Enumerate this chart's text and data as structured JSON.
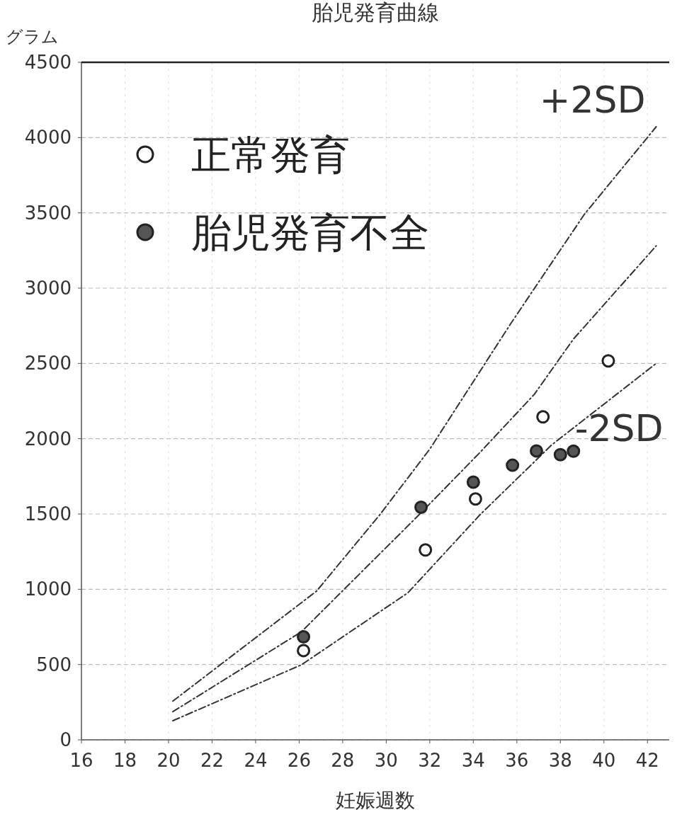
{
  "chart_data": {
    "type": "scatter",
    "title": "胎児発育曲線",
    "xlabel": "妊娠週数",
    "ylabel": "グラム",
    "xlim": [
      16,
      43
    ],
    "ylim": [
      0,
      4500
    ],
    "xticks": [
      16,
      18,
      20,
      22,
      24,
      26,
      28,
      30,
      32,
      34,
      36,
      38,
      40,
      42
    ],
    "yticks": [
      0,
      500,
      1000,
      1500,
      2000,
      2500,
      3000,
      3500,
      4000,
      4500
    ],
    "grid": true,
    "legend": "top left",
    "series": [
      {
        "name": "+2SD",
        "type": "line",
        "line_style": "dashed",
        "color": "#333333",
        "x": [
          20.2,
          26.8,
          29.7,
          32.0,
          35.7,
          36.8,
          39.1,
          42.4
        ],
        "values": [
          257,
          988,
          1494,
          1931,
          2760,
          2997,
          3490,
          4072
        ]
      },
      {
        "type": "line",
        "line_style": "dashed",
        "color": "#333333",
        "x": [
          20.2,
          26.1,
          31.5,
          34.3,
          36.8,
          38.6,
          42.4
        ],
        "values": [
          187,
          717,
          1494,
          1908,
          2294,
          2662,
          3281
        ]
      },
      {
        "name": "-2SD",
        "type": "line",
        "line_style": "dashed",
        "color": "#333333",
        "x": [
          20.2,
          26.1,
          31.0,
          34.3,
          37.6,
          42.4
        ],
        "values": [
          127,
          498,
          977,
          1494,
          1959,
          2500
        ]
      },
      {
        "name": "正常発育",
        "marker": "circle",
        "color": "#ffffff",
        "x": [
          26.2,
          31.8,
          34.1,
          37.2,
          40.2
        ],
        "values": [
          593,
          1261,
          1600,
          2145,
          2517
        ]
      },
      {
        "name": "胎児発育不全",
        "marker": "circle",
        "color": "#555555",
        "x": [
          26.2,
          31.6,
          34.0,
          35.8,
          36.9,
          38.0,
          38.6
        ],
        "values": [
          684,
          1545,
          1712,
          1824,
          1919,
          1894,
          1917
        ]
      }
    ]
  }
}
